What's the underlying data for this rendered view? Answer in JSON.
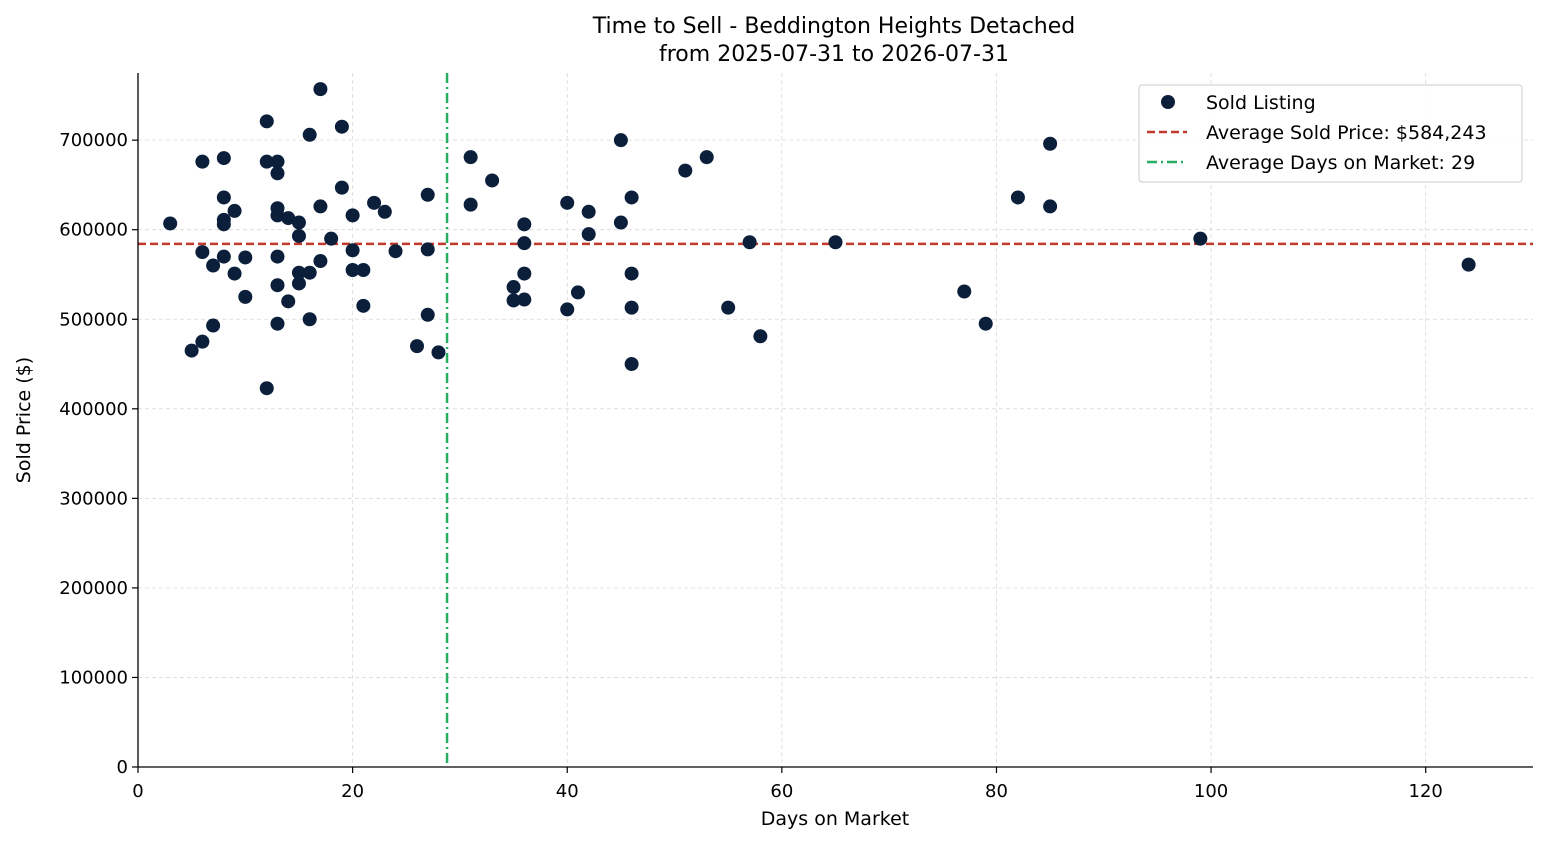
{
  "chart_data": {
    "type": "scatter",
    "title": "Time to Sell - Beddington Heights Detached",
    "subtitle": "from 2025-07-31 to 2026-07-31",
    "xlabel": "Days on Market",
    "ylabel": "Sold Price ($)",
    "xlim": [
      0,
      130
    ],
    "ylim": [
      0,
      775000
    ],
    "x_ticks": [
      0,
      20,
      40,
      60,
      80,
      100,
      120
    ],
    "y_ticks": [
      0,
      100000,
      200000,
      300000,
      400000,
      500000,
      600000,
      700000
    ],
    "grid": true,
    "legend_position": "top-right",
    "colors": {
      "points": "#0b1f3b",
      "avg_price": "#c0392b",
      "avg_days": "#27ae60"
    },
    "series": [
      {
        "name": "Sold Listing",
        "points": [
          [
            3,
            607000
          ],
          [
            5,
            465000
          ],
          [
            6,
            475000
          ],
          [
            6,
            575000
          ],
          [
            6,
            676000
          ],
          [
            7,
            493000
          ],
          [
            7,
            560000
          ],
          [
            8,
            570000
          ],
          [
            8,
            606000
          ],
          [
            8,
            611000
          ],
          [
            8,
            636000
          ],
          [
            8,
            680000
          ],
          [
            9,
            551000
          ],
          [
            9,
            621000
          ],
          [
            10,
            525000
          ],
          [
            10,
            569000
          ],
          [
            12,
            423000
          ],
          [
            12,
            676000
          ],
          [
            12,
            721000
          ],
          [
            13,
            495000
          ],
          [
            13,
            538000
          ],
          [
            13,
            570000
          ],
          [
            13,
            616000
          ],
          [
            13,
            624000
          ],
          [
            13,
            663000
          ],
          [
            13,
            676000
          ],
          [
            14,
            520000
          ],
          [
            14,
            613000
          ],
          [
            15,
            540000
          ],
          [
            15,
            552000
          ],
          [
            15,
            593000
          ],
          [
            15,
            608000
          ],
          [
            16,
            500000
          ],
          [
            16,
            552000
          ],
          [
            16,
            706000
          ],
          [
            17,
            565000
          ],
          [
            17,
            626000
          ],
          [
            17,
            757000
          ],
          [
            18,
            590000
          ],
          [
            19,
            647000
          ],
          [
            19,
            715000
          ],
          [
            20,
            555000
          ],
          [
            20,
            577000
          ],
          [
            20,
            616000
          ],
          [
            21,
            515000
          ],
          [
            21,
            555000
          ],
          [
            22,
            630000
          ],
          [
            23,
            620000
          ],
          [
            24,
            576000
          ],
          [
            26,
            470000
          ],
          [
            27,
            505000
          ],
          [
            27,
            578000
          ],
          [
            27,
            639000
          ],
          [
            28,
            463000
          ],
          [
            31,
            628000
          ],
          [
            31,
            681000
          ],
          [
            33,
            655000
          ],
          [
            35,
            521000
          ],
          [
            35,
            536000
          ],
          [
            36,
            522000
          ],
          [
            36,
            551000
          ],
          [
            36,
            585000
          ],
          [
            36,
            606000
          ],
          [
            40,
            511000
          ],
          [
            40,
            630000
          ],
          [
            41,
            530000
          ],
          [
            42,
            595000
          ],
          [
            42,
            620000
          ],
          [
            45,
            608000
          ],
          [
            45,
            700000
          ],
          [
            46,
            450000
          ],
          [
            46,
            513000
          ],
          [
            46,
            551000
          ],
          [
            46,
            636000
          ],
          [
            51,
            666000
          ],
          [
            53,
            681000
          ],
          [
            55,
            513000
          ],
          [
            57,
            586000
          ],
          [
            58,
            481000
          ],
          [
            65,
            586000
          ],
          [
            77,
            531000
          ],
          [
            79,
            495000
          ],
          [
            82,
            636000
          ],
          [
            85,
            626000
          ],
          [
            85,
            696000
          ],
          [
            99,
            590000
          ],
          [
            124,
            561000
          ]
        ]
      }
    ],
    "reference_lines": [
      {
        "name": "Average Sold Price: $584,243",
        "orientation": "horizontal",
        "value": 584243,
        "style": "dashed"
      },
      {
        "name": "Average Days on Market: 29",
        "orientation": "vertical",
        "value": 28.8,
        "style": "dashdot"
      }
    ]
  }
}
